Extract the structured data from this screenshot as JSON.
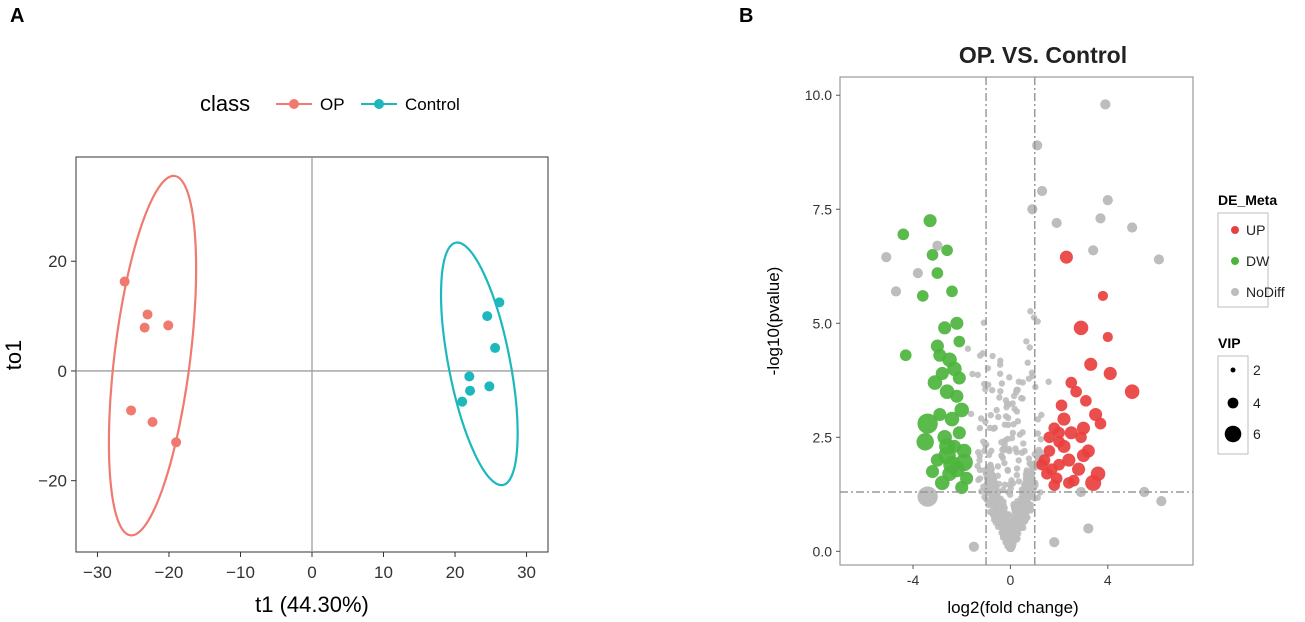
{
  "chart_data": [
    {
      "panel_label": "A",
      "type": "scatter",
      "subtype": "OPLS-DA score plot with confidence ellipses",
      "title": "",
      "xlabel": "t1 (44.30%)",
      "ylabel": "to1",
      "xlim": [
        -33,
        33
      ],
      "ylim": [
        -33,
        39
      ],
      "xticks": [
        -30,
        -20,
        -10,
        0,
        10,
        20,
        30
      ],
      "xtick_labels": [
        "−30",
        "−20",
        "−10",
        "0",
        "10",
        "20",
        "30"
      ],
      "yticks": [
        -20,
        0,
        20
      ],
      "ytick_labels": [
        "−20",
        "0",
        "20"
      ],
      "legend": {
        "title": "class",
        "position": "top",
        "entries": [
          "OP",
          "Control"
        ]
      },
      "series": [
        {
          "name": "OP",
          "color": "#F07A70",
          "x": [
            -26.2,
            -23.0,
            -23.4,
            -20.1,
            -25.3,
            -22.3,
            -19.0
          ],
          "y": [
            16.3,
            10.3,
            7.9,
            8.3,
            -7.2,
            -9.3,
            -13.0
          ],
          "ellipse": {
            "cx": -22.3,
            "cy": 2.8,
            "rx": 5.3,
            "ry": 33.0,
            "rotation_deg": 7
          }
        },
        {
          "name": "Control",
          "color": "#1CB8BE",
          "x": [
            26.2,
            24.5,
            25.6,
            22.0,
            22.1,
            24.8,
            21.0
          ],
          "y": [
            12.5,
            10.0,
            4.2,
            -1.0,
            -3.6,
            -2.8,
            -5.6
          ],
          "ellipse": {
            "cx": 23.4,
            "cy": 1.3,
            "rx": 4.3,
            "ry": 22.5,
            "rotation_deg": -11
          }
        }
      ]
    },
    {
      "panel_label": "B",
      "type": "scatter",
      "subtype": "volcano plot",
      "title": "OP. VS. Control",
      "xlabel": "log2(fold change)",
      "ylabel": "-log10(pvalue)",
      "xlim": [
        -7,
        7.5
      ],
      "ylim": [
        -0.3,
        10.4
      ],
      "xticks": [
        -4,
        0,
        4
      ],
      "xtick_labels": [
        "-4",
        "0",
        "4"
      ],
      "yticks": [
        0,
        2.5,
        5,
        7.5,
        10
      ],
      "ytick_labels": [
        "0.0",
        "2.5",
        "5.0",
        "7.5",
        "10.0"
      ],
      "thresholds": {
        "fold_change_lines": [
          -1,
          1
        ],
        "pvalue_line": 1.3
      },
      "legend": {
        "position": "right",
        "color_title": "DE_Meta",
        "color_entries": [
          {
            "label": "UP",
            "color": "#E8403F"
          },
          {
            "label": "DW",
            "color": "#4DB43D"
          },
          {
            "label": "NoDiff",
            "color": "#BDBDBD"
          }
        ],
        "size_title": "VIP",
        "size_entries": [
          {
            "label": "2",
            "value": 2
          },
          {
            "label": "4",
            "value": 4
          },
          {
            "label": "6",
            "value": 6
          }
        ]
      },
      "series": [
        {
          "name": "UP",
          "color": "#E8403F",
          "x": [
            2.3,
            3.8,
            2.9,
            4.0,
            3.3,
            4.1,
            5.0,
            2.7,
            3.1,
            3.5,
            2.2,
            1.8,
            2.5,
            2.0,
            1.6,
            3.0,
            2.4,
            3.6,
            2.0,
            2.8,
            1.5,
            1.9,
            2.6,
            3.4,
            1.7,
            2.2,
            2.9,
            3.7,
            2.1,
            1.4,
            1.8,
            2.4,
            3.0,
            2.5,
            1.6,
            3.2,
            1.3,
            2.0
          ],
          "y": [
            6.45,
            5.6,
            4.9,
            4.7,
            4.1,
            3.9,
            3.5,
            3.5,
            3.3,
            3.0,
            2.9,
            2.7,
            2.6,
            2.4,
            2.2,
            2.1,
            2.0,
            1.7,
            1.9,
            1.8,
            1.7,
            1.6,
            1.55,
            1.5,
            1.8,
            2.3,
            2.5,
            2.8,
            3.2,
            2.0,
            1.45,
            1.5,
            2.7,
            3.7,
            2.5,
            2.2,
            1.9,
            2.6
          ],
          "vip": [
            3,
            2,
            3.5,
            2,
            3,
            3,
            3.5,
            2.5,
            2.5,
            3,
            3,
            2.5,
            3,
            2.5,
            2.5,
            3,
            3,
            3.5,
            2.5,
            3,
            2.5,
            2.5,
            2.5,
            4,
            2.5,
            3,
            2.5,
            2.5,
            2.5,
            2.5,
            2.5,
            2.5,
            3,
            2.5,
            2.5,
            3,
            2.5,
            2.5
          ]
        },
        {
          "name": "DW",
          "color": "#4DB43D",
          "x": [
            -3.3,
            -4.4,
            -3.2,
            -2.6,
            -3.0,
            -3.6,
            -2.4,
            -2.2,
            -2.7,
            -2.1,
            -2.9,
            -4.3,
            -3.0,
            -2.5,
            -2.3,
            -2.8,
            -3.1,
            -2.6,
            -2.2,
            -2.0,
            -2.9,
            -2.4,
            -3.4,
            -2.1,
            -2.7,
            -2.3,
            -1.9,
            -2.6,
            -3.0,
            -2.2,
            -2.5,
            -1.8,
            -2.8,
            -2.4,
            -2.0,
            -3.5,
            -2.6,
            -1.9,
            -3.2,
            -2.1
          ],
          "y": [
            7.25,
            6.95,
            6.5,
            6.6,
            6.1,
            5.6,
            5.7,
            5.0,
            4.9,
            4.6,
            4.3,
            4.3,
            4.5,
            4.2,
            4.0,
            3.9,
            3.7,
            3.5,
            3.4,
            3.1,
            3.0,
            2.9,
            2.8,
            2.6,
            2.5,
            2.3,
            2.2,
            2.1,
            2.0,
            1.8,
            1.7,
            1.6,
            1.5,
            1.9,
            1.4,
            2.4,
            2.3,
            1.95,
            1.75,
            3.8
          ],
          "vip": [
            3,
            2.5,
            2.5,
            2.5,
            2.5,
            2.5,
            2.5,
            3,
            3,
            2.5,
            3,
            2.5,
            3,
            3.5,
            3.5,
            3,
            3.5,
            3.5,
            3,
            3.5,
            3,
            3.5,
            5.5,
            3,
            3.5,
            3,
            3.5,
            4.5,
            3,
            4,
            3.5,
            3,
            3.5,
            4.5,
            3,
            4.5,
            4,
            4.5,
            3,
            3
          ]
        },
        {
          "name": "NoDiff",
          "color": "#BDBDBD",
          "generated": "approx. 700 background points clustered near the origin in a V shape, mostly within |log2FC| < 3",
          "x": [
            0.9,
            1.1,
            1.3,
            3.9,
            1.9,
            4.0,
            5.0,
            6.1,
            3.7,
            3.4,
            -5.1,
            -4.7,
            -3.8,
            -3.0,
            5.5,
            6.2,
            -3.4,
            0.3,
            -0.2,
            2.9,
            -1.5,
            3.2,
            1.8
          ],
          "y": [
            7.5,
            8.9,
            7.9,
            9.8,
            7.2,
            7.7,
            7.1,
            6.4,
            7.3,
            6.6,
            6.45,
            5.7,
            6.1,
            6.7,
            1.3,
            1.1,
            1.2,
            0.9,
            0.5,
            1.3,
            0.1,
            0.5,
            0.2
          ],
          "vip": [
            2,
            2,
            2,
            2,
            2,
            2,
            2,
            2,
            2,
            2,
            2,
            2,
            2,
            2,
            2,
            2,
            5.5,
            2,
            2,
            2,
            2,
            2,
            2
          ]
        }
      ]
    }
  ]
}
